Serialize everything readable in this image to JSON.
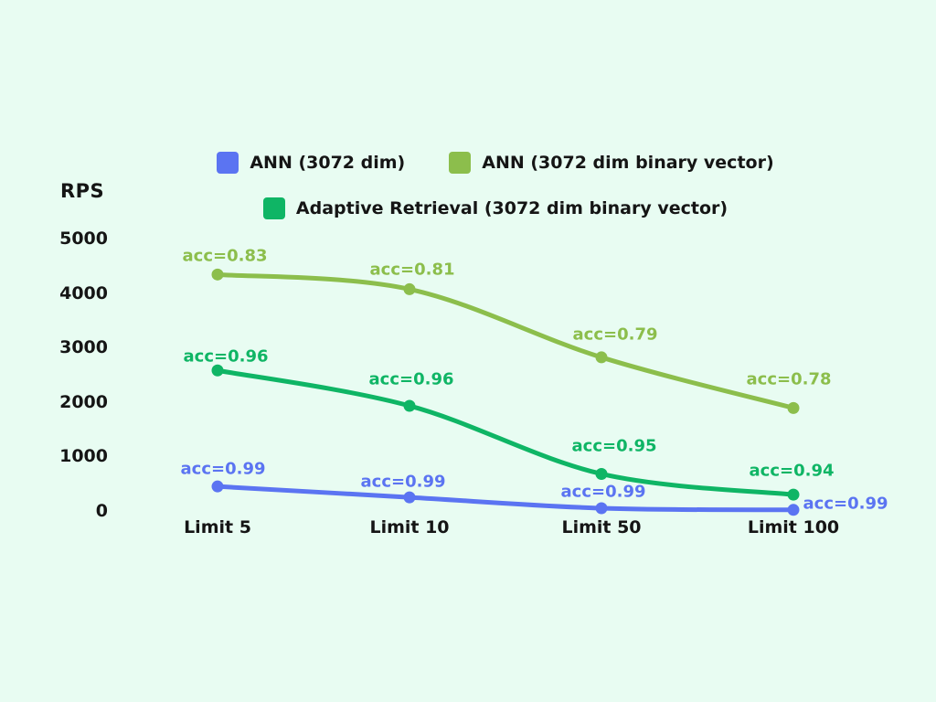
{
  "background_color": "#E8FCF2",
  "text_color": "#151515",
  "chart_data": {
    "type": "line",
    "title": "",
    "ylabel": "RPS",
    "xlabel": "",
    "categories": [
      "Limit 5",
      "Limit 10",
      "Limit 50",
      "Limit 100"
    ],
    "yticks": [
      5000,
      4000,
      3000,
      2000,
      1000,
      0
    ],
    "ylim": [
      0,
      5000
    ],
    "grid": false,
    "axes_lines": false,
    "legend_position": "top-center",
    "series": [
      {
        "name": "ANN (3072 dim)",
        "color": "#5B74F2",
        "values": [
          450,
          250,
          50,
          20
        ],
        "point_labels": [
          "acc=0.99",
          "acc=0.99",
          "acc=0.99",
          "acc=0.99"
        ],
        "label_offsets": [
          [
            6,
            -19
          ],
          [
            -7,
            -17
          ],
          [
            2,
            -18
          ],
          [
            57,
            -7
          ]
        ]
      },
      {
        "name": "ANN (3072 dim binary vector)",
        "color": "#8CBE4C",
        "values": [
          4340,
          4070,
          2820,
          1890
        ],
        "point_labels": [
          "acc=0.83",
          "acc=0.81",
          "acc=0.79",
          "acc=0.78"
        ],
        "label_offsets": [
          [
            8,
            -20
          ],
          [
            3,
            -21
          ],
          [
            15,
            -25
          ],
          [
            -5,
            -31
          ]
        ]
      },
      {
        "name": "Adaptive Retrieval (3072 dim binary vector)",
        "color": "#0FB565",
        "values": [
          2580,
          1930,
          680,
          300
        ],
        "point_labels": [
          "acc=0.96",
          "acc=0.96",
          "acc=0.95",
          "acc=0.94"
        ],
        "label_offsets": [
          [
            9,
            -15
          ],
          [
            2,
            -29
          ],
          [
            14,
            -30
          ],
          [
            -2,
            -26
          ]
        ]
      }
    ]
  }
}
